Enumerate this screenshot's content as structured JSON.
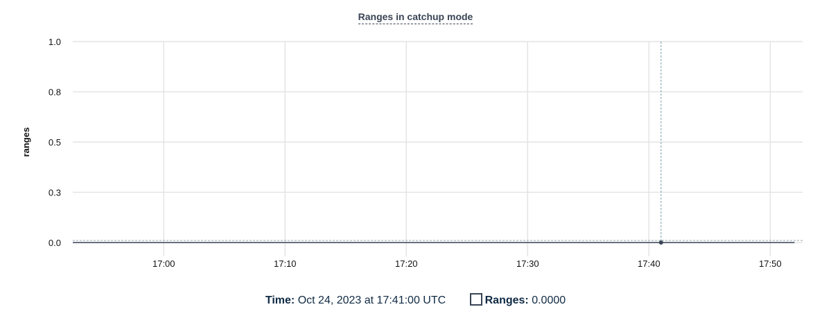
{
  "chart_data": {
    "type": "line",
    "title": "Ranges in catchup mode",
    "ylabel": "ranges",
    "xlabel": "",
    "ylim": [
      0,
      1
    ],
    "yticks": [
      0,
      0.25,
      0.5,
      0.75,
      1
    ],
    "ytick_labels": [
      "0.0",
      "0.3",
      "0.5",
      "0.8",
      "1.0"
    ],
    "xlim": [
      "16:52:30",
      "17:52:40"
    ],
    "xticks": [
      "17:00",
      "17:10",
      "17:20",
      "17:30",
      "17:40",
      "17:50"
    ],
    "grid": true,
    "series": [
      {
        "name": "Ranges",
        "color": "#394455",
        "x": [
          "16:53",
          "16:54",
          "16:55",
          "16:56",
          "16:57",
          "16:58",
          "16:59",
          "17:00",
          "17:01",
          "17:02",
          "17:03",
          "17:04",
          "17:05",
          "17:06",
          "17:07",
          "17:08",
          "17:09",
          "17:10",
          "17:11",
          "17:12",
          "17:13",
          "17:14",
          "17:15",
          "17:16",
          "17:17",
          "17:18",
          "17:19",
          "17:20",
          "17:21",
          "17:22",
          "17:23",
          "17:24",
          "17:25",
          "17:26",
          "17:27",
          "17:28",
          "17:29",
          "17:30",
          "17:31",
          "17:32",
          "17:33",
          "17:34",
          "17:35",
          "17:36",
          "17:37",
          "17:38",
          "17:39",
          "17:40",
          "17:41",
          "17:42",
          "17:43",
          "17:44",
          "17:45",
          "17:46",
          "17:47",
          "17:48",
          "17:49",
          "17:50",
          "17:51",
          "17:52"
        ],
        "values": [
          0,
          0,
          0,
          0,
          0,
          0,
          0,
          0,
          0,
          0,
          0,
          0,
          0,
          0,
          0,
          0,
          0,
          0,
          0,
          0,
          0,
          0,
          0,
          0,
          0,
          0,
          0,
          0,
          0,
          0,
          0,
          0,
          0,
          0,
          0,
          0,
          0,
          0,
          0,
          0,
          0,
          0,
          0,
          0,
          0,
          0,
          0,
          0,
          0,
          0,
          0,
          0,
          0,
          0,
          0,
          0,
          0,
          0,
          0,
          0
        ]
      }
    ],
    "hover": {
      "x": "17:41",
      "value": 0
    }
  },
  "legend": {
    "time_label": "Time:",
    "time_value": "Oct 24, 2023 at 17:41:00 UTC",
    "series_label": "Ranges:",
    "series_value": "0.0000"
  }
}
